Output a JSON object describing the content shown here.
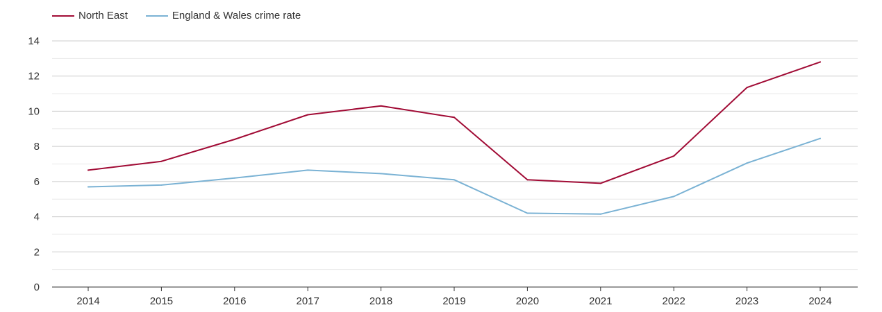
{
  "chart_data": {
    "type": "line",
    "title": "",
    "xlabel": "",
    "ylabel": "",
    "categories": [
      "2014",
      "2015",
      "2016",
      "2017",
      "2018",
      "2019",
      "2020",
      "2021",
      "2022",
      "2023",
      "2024"
    ],
    "ylim": [
      0,
      14
    ],
    "yticks": [
      0,
      2,
      4,
      6,
      8,
      10,
      12,
      14
    ],
    "grid": true,
    "legend_position": "top-left",
    "series": [
      {
        "name": "North East",
        "color": "#a10b35",
        "values": [
          6.65,
          7.15,
          8.4,
          9.8,
          10.3,
          9.65,
          6.1,
          5.9,
          7.45,
          11.35,
          12.8
        ]
      },
      {
        "name": "England & Wales crime rate",
        "color": "#7ab2d4",
        "values": [
          5.7,
          5.8,
          6.2,
          6.65,
          6.45,
          6.1,
          4.2,
          4.15,
          5.15,
          7.05,
          8.45
        ]
      }
    ]
  }
}
